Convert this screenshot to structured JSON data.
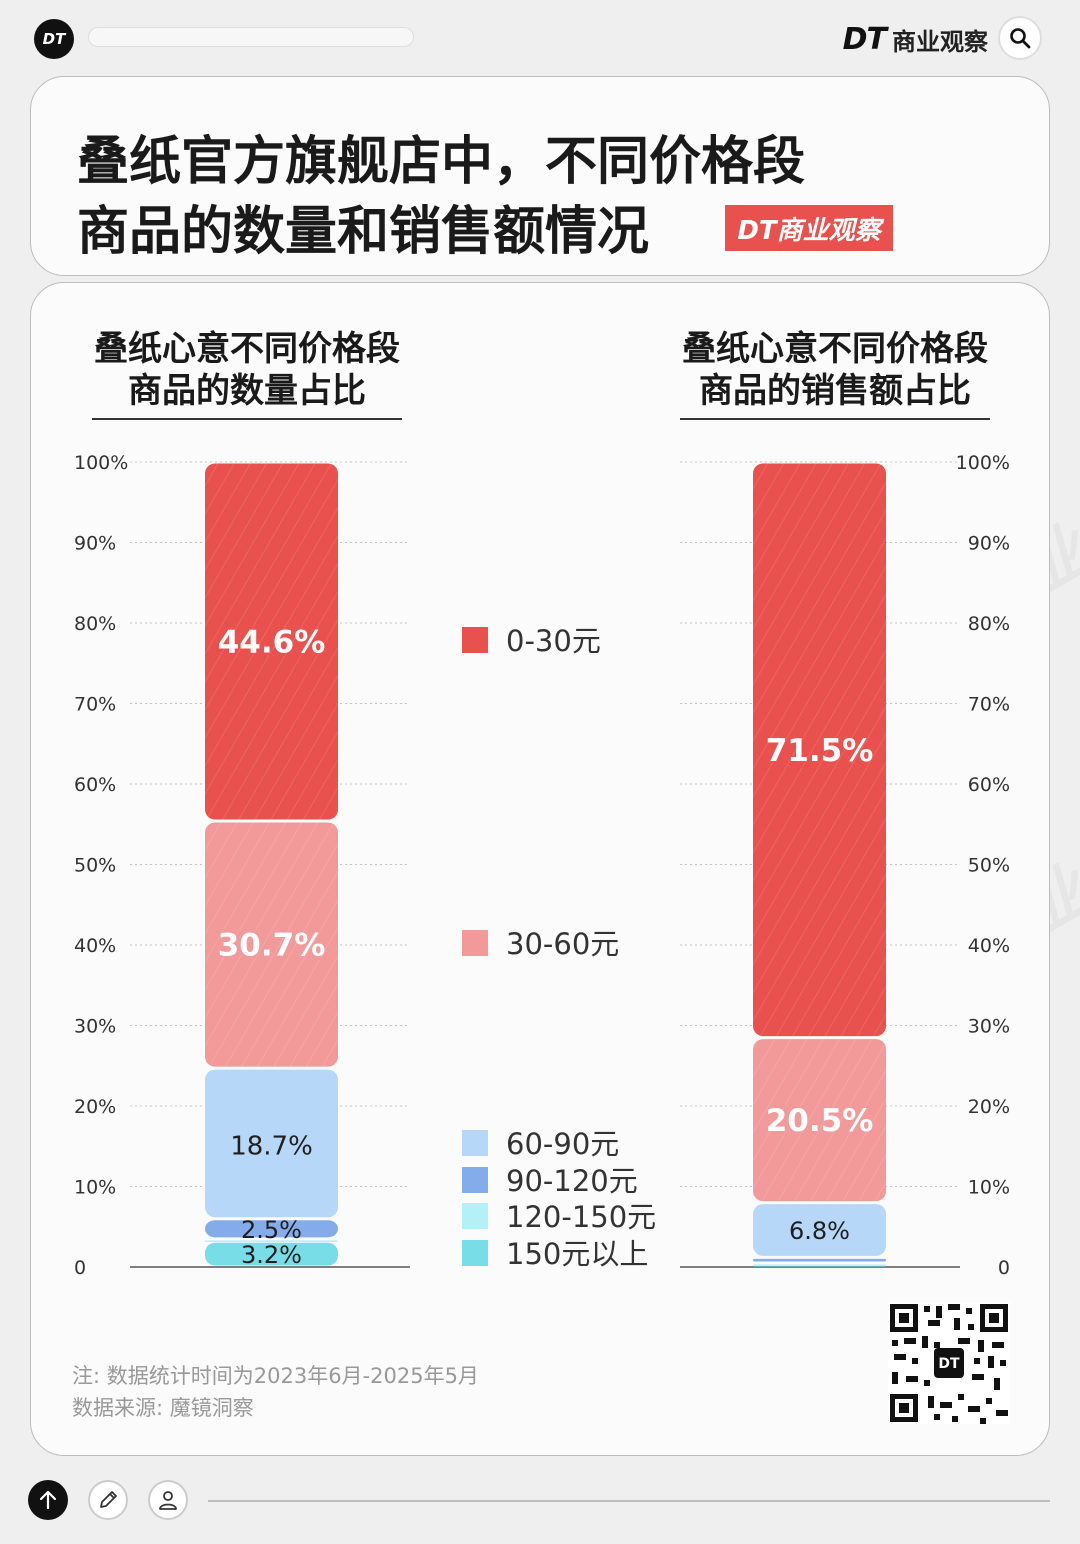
{
  "header": {
    "logo_text": "DT",
    "brand_mark": "DT",
    "brand_name": "商业观察"
  },
  "title": {
    "line1": "叠纸官方旗舰店中，不同价格段",
    "line2": "商品的数量和销售额情况",
    "badge": "DT商业观察"
  },
  "chart_data": [
    {
      "type": "bar",
      "stacked": true,
      "title": "叠纸心意不同价格段商品的数量占比",
      "title_lines": [
        "叠纸心意不同价格段",
        "商品的数量占比"
      ],
      "categories": [
        "数量占比"
      ],
      "ylim": [
        0,
        100
      ],
      "yticks": [
        "0",
        "10%",
        "20%",
        "30%",
        "40%",
        "50%",
        "60%",
        "70%",
        "80%",
        "90%",
        "100%"
      ],
      "y_axis_side": "left",
      "grid": true,
      "series": [
        {
          "name": "150元以上",
          "values": [
            3.2
          ],
          "label": "3.2%"
        },
        {
          "name": "120-150元",
          "values": [
            0.3
          ],
          "label": ""
        },
        {
          "name": "90-120元",
          "values": [
            2.5
          ],
          "label": "2.5%"
        },
        {
          "name": "60-90元",
          "values": [
            18.7
          ],
          "label": "18.7%"
        },
        {
          "name": "30-60元",
          "values": [
            30.7
          ],
          "label": "30.7%"
        },
        {
          "name": "0-30元",
          "values": [
            44.6
          ],
          "label": "44.6%"
        }
      ]
    },
    {
      "type": "bar",
      "stacked": true,
      "title": "叠纸心意不同价格段商品的销售额占比",
      "title_lines": [
        "叠纸心意不同价格段",
        "商品的销售额占比"
      ],
      "categories": [
        "销售额占比"
      ],
      "ylim": [
        0,
        100
      ],
      "yticks": [
        "0",
        "10%",
        "20%",
        "30%",
        "40%",
        "50%",
        "60%",
        "70%",
        "80%",
        "90%",
        "100%"
      ],
      "y_axis_side": "right",
      "grid": true,
      "series": [
        {
          "name": "150元以上",
          "values": [
            0.4
          ],
          "label": ""
        },
        {
          "name": "120-150元",
          "values": [
            0.1
          ],
          "label": ""
        },
        {
          "name": "90-120元",
          "values": [
            0.7
          ],
          "label": ""
        },
        {
          "name": "60-90元",
          "values": [
            6.8
          ],
          "label": "6.8%"
        },
        {
          "name": "30-60元",
          "values": [
            20.5
          ],
          "label": "20.5%"
        },
        {
          "name": "0-30元",
          "values": [
            71.5
          ],
          "label": "71.5%"
        }
      ]
    }
  ],
  "legend": [
    {
      "name": "0-30元",
      "color": "#e8514d"
    },
    {
      "name": "30-60元",
      "color": "#f2999a"
    },
    {
      "name": "60-90元",
      "color": "#b6d7f7"
    },
    {
      "name": "90-120元",
      "color": "#84aceb"
    },
    {
      "name": "120-150元",
      "color": "#b3f0f7"
    },
    {
      "name": "150元以上",
      "color": "#79dde8"
    }
  ],
  "colors": {
    "0-30元": "#e8514d",
    "30-60元": "#f2999a",
    "60-90元": "#b6d7f7",
    "90-120元": "#84aceb",
    "120-150元": "#b3f0f7",
    "150元以上": "#79dde8"
  },
  "notes": {
    "line1": "注: 数据统计时间为2023年6月-2025年5月",
    "line2": "数据来源: 魔镜洞察"
  },
  "watermark_text": "DT商业观察"
}
